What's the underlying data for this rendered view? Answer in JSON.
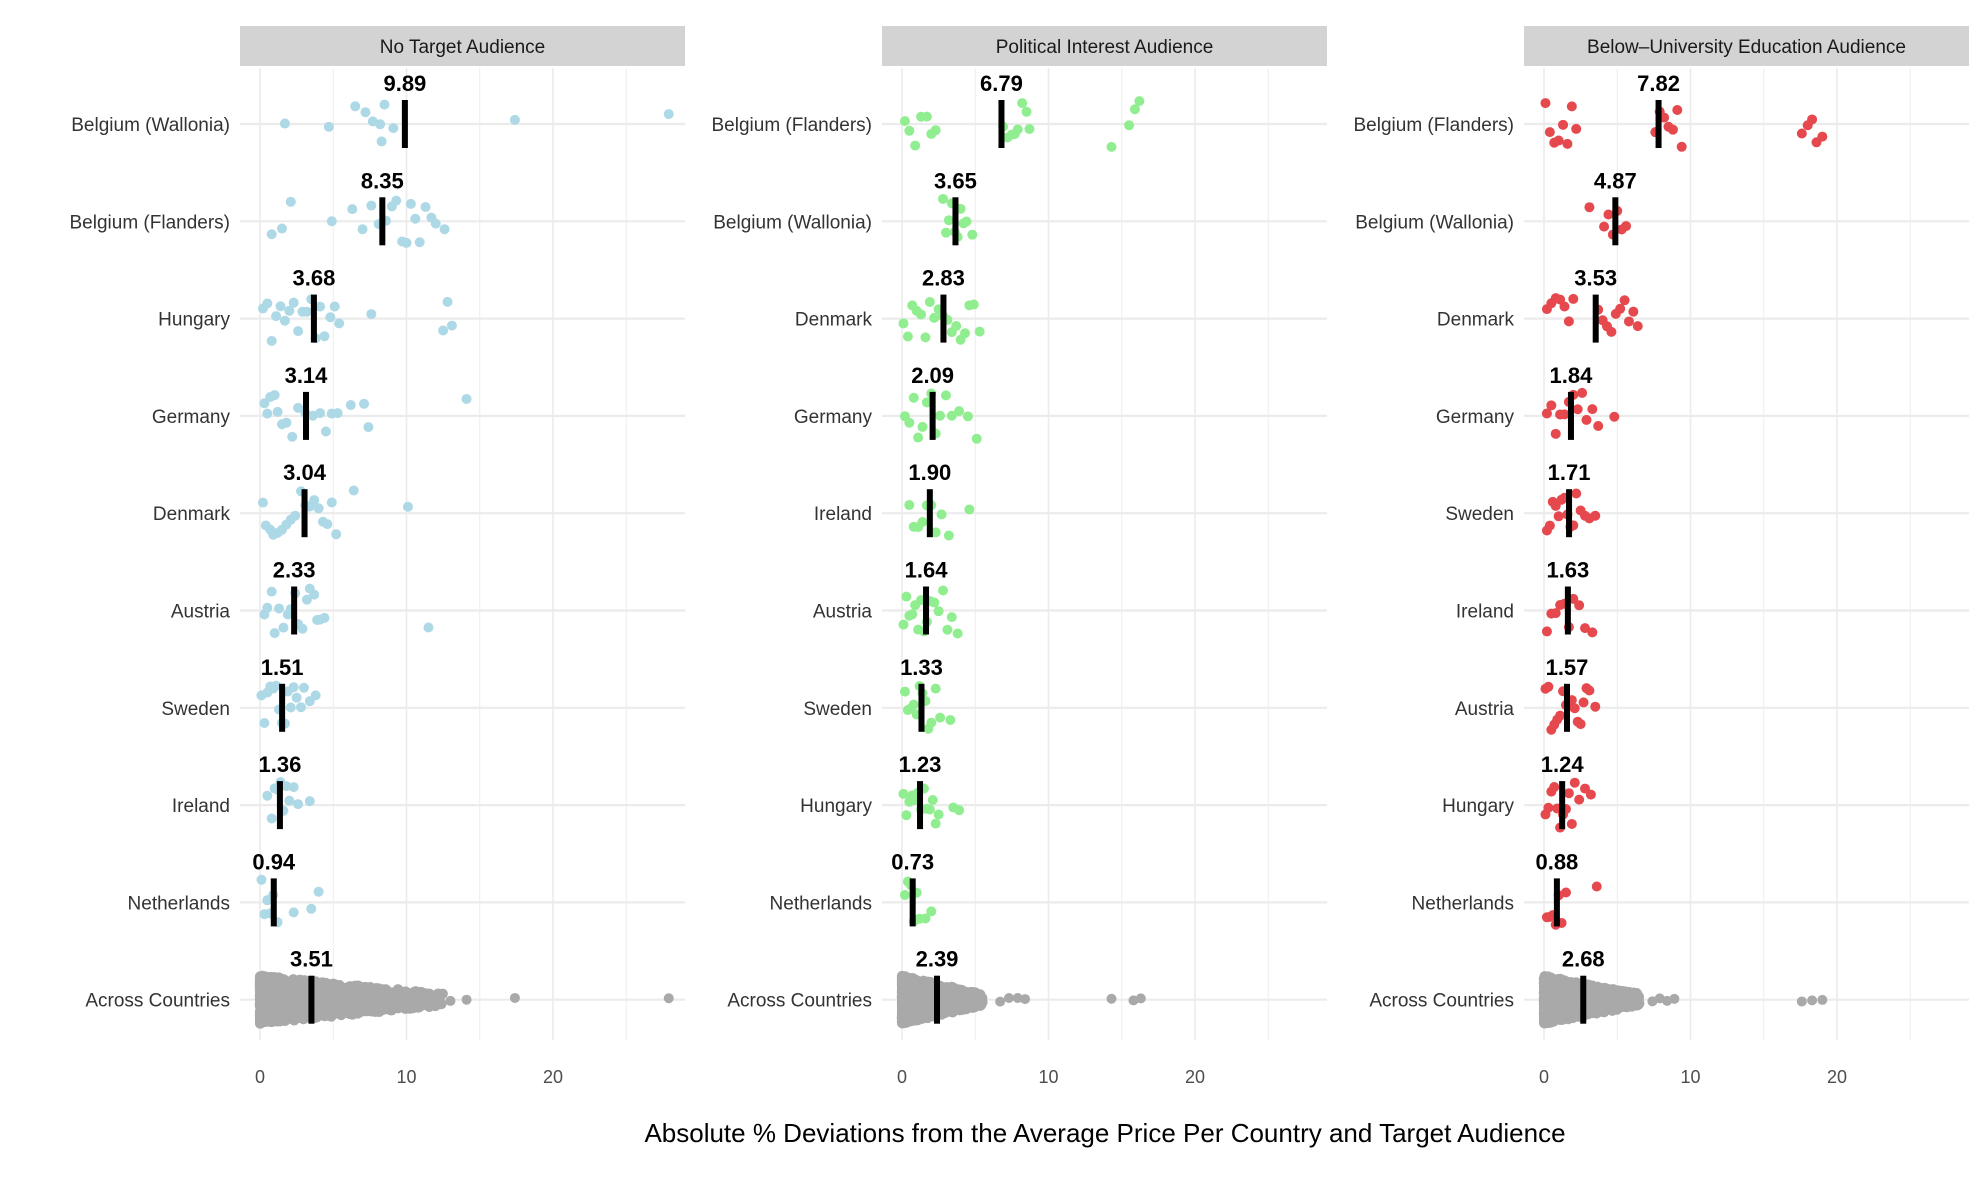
{
  "figure": {
    "xlabel": "Absolute % Deviations from the Average Price Per Country and Target Audience"
  },
  "colors": {
    "strip_bg": "#d3d3d3",
    "grid": "#ebebeb",
    "pooled": "#a9a9a9",
    "median_bar": "#000000",
    "panel_colors": [
      "#add8e6",
      "#90ee90",
      "#e5484d"
    ]
  },
  "chart_data": [
    {
      "type": "scatter",
      "subtype": "jittered strip plot with median markers",
      "panel_title": "No Target Audience",
      "xlim": [
        -1,
        29
      ],
      "xticks": [
        0,
        10,
        20
      ],
      "categories": [
        "Belgium (Wallonia)",
        "Belgium (Flanders)",
        "Hungary",
        "Germany",
        "Denmark",
        "Austria",
        "Sweden",
        "Ireland",
        "Netherlands",
        "Across Countries"
      ],
      "median_labels": [
        "9.89",
        "8.35",
        "3.68",
        "3.14",
        "3.04",
        "2.33",
        "1.51",
        "1.36",
        "0.94",
        "3.51"
      ],
      "medians": [
        9.89,
        8.35,
        3.68,
        3.14,
        3.04,
        2.33,
        1.51,
        1.36,
        0.94,
        3.51
      ],
      "points": [
        [
          1.7,
          4.7,
          6.5,
          7.2,
          7.7,
          8.2,
          8.5,
          8.3,
          9.1,
          17.4,
          27.9
        ],
        [
          0.8,
          1.5,
          2.1,
          4.9,
          6.3,
          7.0,
          7.6,
          8.1,
          8.6,
          9.0,
          9.3,
          9.7,
          10.0,
          10.3,
          10.6,
          10.9,
          11.3,
          11.7,
          12.0,
          12.6
        ],
        [
          0.2,
          0.5,
          0.8,
          1.1,
          1.4,
          1.7,
          2.0,
          2.3,
          2.6,
          2.9,
          3.2,
          3.5,
          3.8,
          4.1,
          4.4,
          4.8,
          5.1,
          5.4,
          7.6,
          12.5,
          13.1,
          12.8
        ],
        [
          0.3,
          0.5,
          0.7,
          1.0,
          1.2,
          1.5,
          1.8,
          2.2,
          2.6,
          3.1,
          3.6,
          4.1,
          4.5,
          4.9,
          5.3,
          6.2,
          7.1,
          7.4,
          14.1
        ],
        [
          0.2,
          0.4,
          0.7,
          0.9,
          1.2,
          1.5,
          1.8,
          2.1,
          2.4,
          2.8,
          3.1,
          3.4,
          3.7,
          4.0,
          4.3,
          4.6,
          4.9,
          5.2,
          6.4,
          10.1
        ],
        [
          0.3,
          0.5,
          0.8,
          1.0,
          1.3,
          1.6,
          1.9,
          2.1,
          2.4,
          2.6,
          2.9,
          3.2,
          3.4,
          3.7,
          3.9,
          4.1,
          4.4,
          11.5
        ],
        [
          0.1,
          0.3,
          0.5,
          0.7,
          0.9,
          1.1,
          1.3,
          1.5,
          1.7,
          1.9,
          2.1,
          2.3,
          2.5,
          2.8,
          3.0,
          3.4,
          3.8
        ],
        [
          0.5,
          0.8,
          1.0,
          1.2,
          1.4,
          1.6,
          1.8,
          2.0,
          2.3,
          2.6,
          3.4
        ],
        [
          0.1,
          0.3,
          0.5,
          0.7,
          0.9,
          1.2,
          2.3,
          3.5,
          4.0
        ],
        [
          13.0,
          14.1,
          17.4,
          27.9
        ]
      ],
      "pooled_range": [
        0,
        12.5
      ]
    },
    {
      "type": "scatter",
      "subtype": "jittered strip plot with median markers",
      "panel_title": "Political Interest Audience",
      "xlim": [
        -1,
        29
      ],
      "xticks": [
        0,
        10,
        20
      ],
      "categories": [
        "Belgium (Flanders)",
        "Belgium (Wallonia)",
        "Denmark",
        "Germany",
        "Ireland",
        "Austria",
        "Sweden",
        "Hungary",
        "Netherlands",
        "Across Countries"
      ],
      "median_labels": [
        "6.79",
        "3.65",
        "2.83",
        "2.09",
        "1.90",
        "1.64",
        "1.33",
        "1.23",
        "0.73",
        "2.39"
      ],
      "medians": [
        6.79,
        3.65,
        2.83,
        2.09,
        1.9,
        1.64,
        1.33,
        1.23,
        0.73,
        2.39
      ],
      "points": [
        [
          0.2,
          0.5,
          0.9,
          1.3,
          1.7,
          2.0,
          2.3,
          6.9,
          7.2,
          7.5,
          7.7,
          7.9,
          8.2,
          8.5,
          8.7,
          14.3,
          15.5,
          15.9,
          16.2
        ],
        [
          2.8,
          3.0,
          3.2,
          3.4,
          3.6,
          3.8,
          4.0,
          4.2,
          4.4,
          4.8
        ],
        [
          0.1,
          0.4,
          0.7,
          1.0,
          1.3,
          1.6,
          1.9,
          2.2,
          2.5,
          2.8,
          3.1,
          3.4,
          3.7,
          4.0,
          4.3,
          4.6,
          4.9,
          5.3
        ],
        [
          0.2,
          0.5,
          0.8,
          1.1,
          1.4,
          1.7,
          2.0,
          2.3,
          2.6,
          3.0,
          3.4,
          3.9,
          4.5,
          5.1
        ],
        [
          0.5,
          0.8,
          1.1,
          1.4,
          1.7,
          2.0,
          2.3,
          2.7,
          3.2,
          4.6
        ],
        [
          0.1,
          0.3,
          0.5,
          0.7,
          0.9,
          1.1,
          1.3,
          1.5,
          1.7,
          1.9,
          2.2,
          2.5,
          2.8,
          3.1,
          3.4,
          3.8
        ],
        [
          0.2,
          0.4,
          0.6,
          0.8,
          1.0,
          1.2,
          1.4,
          1.6,
          1.8,
          2.0,
          2.3,
          2.6,
          3.3
        ],
        [
          0.1,
          0.3,
          0.5,
          0.7,
          0.9,
          1.1,
          1.3,
          1.5,
          1.7,
          1.9,
          2.1,
          2.3,
          2.5,
          3.5,
          3.9
        ],
        [
          0.2,
          0.4,
          0.6,
          0.8,
          1.0,
          1.2,
          1.6,
          2.0
        ],
        [
          6.7,
          7.3,
          7.9,
          8.4,
          14.3,
          15.8,
          16.3
        ]
      ],
      "pooled_range": [
        0,
        5.5
      ]
    },
    {
      "type": "scatter",
      "subtype": "jittered strip plot with median markers",
      "panel_title": "Below–University Education Audience",
      "xlim": [
        -1,
        29
      ],
      "xticks": [
        0,
        10,
        20
      ],
      "categories": [
        "Belgium (Flanders)",
        "Belgium (Wallonia)",
        "Denmark",
        "Germany",
        "Sweden",
        "Ireland",
        "Austria",
        "Hungary",
        "Netherlands",
        "Across Countries"
      ],
      "median_labels": [
        "7.82",
        "4.87",
        "3.53",
        "1.84",
        "1.71",
        "1.63",
        "1.57",
        "1.24",
        "0.88",
        "2.68"
      ],
      "medians": [
        7.82,
        4.87,
        3.53,
        1.84,
        1.71,
        1.63,
        1.57,
        1.24,
        0.88,
        2.68
      ],
      "points": [
        [
          0.1,
          0.4,
          0.7,
          1.0,
          1.3,
          1.6,
          1.9,
          2.2,
          7.6,
          7.9,
          8.2,
          8.5,
          8.8,
          9.1,
          9.4,
          17.6,
          18.0,
          18.3,
          18.6,
          19.0
        ],
        [
          3.1,
          4.1,
          4.4,
          4.7,
          5.0,
          5.3,
          5.6
        ],
        [
          0.2,
          0.5,
          0.8,
          1.1,
          1.4,
          1.7,
          2.0,
          3.7,
          4.0,
          4.3,
          4.6,
          4.9,
          5.2,
          5.5,
          5.8,
          6.1,
          6.4
        ],
        [
          0.2,
          0.5,
          0.8,
          1.1,
          1.4,
          1.7,
          2.0,
          2.3,
          2.6,
          2.9,
          3.3,
          3.7,
          4.8
        ],
        [
          0.2,
          0.4,
          0.6,
          0.8,
          1.0,
          1.2,
          1.4,
          1.6,
          1.8,
          2.0,
          2.2,
          2.5,
          2.8,
          3.1,
          3.5
        ],
        [
          0.2,
          0.5,
          0.8,
          1.1,
          1.4,
          1.7,
          2.0,
          2.4,
          2.8,
          3.3
        ],
        [
          0.1,
          0.3,
          0.5,
          0.7,
          0.9,
          1.1,
          1.3,
          1.5,
          1.7,
          1.9,
          2.1,
          2.3,
          2.5,
          2.7,
          2.9,
          3.1,
          3.5
        ],
        [
          0.1,
          0.3,
          0.5,
          0.7,
          0.9,
          1.1,
          1.3,
          1.5,
          1.7,
          1.9,
          2.1,
          2.4,
          2.8,
          3.2
        ],
        [
          0.2,
          0.4,
          0.6,
          0.8,
          1.0,
          1.2,
          1.5,
          3.6
        ],
        [
          7.4,
          7.9,
          8.4,
          8.9,
          17.6,
          18.3,
          19.0
        ]
      ],
      "pooled_range": [
        0,
        6.5
      ]
    }
  ]
}
